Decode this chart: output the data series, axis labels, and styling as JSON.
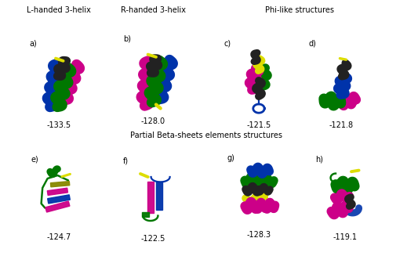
{
  "group1_label": "L-handed 3-helix",
  "group2_label": "R-handed 3-helix",
  "group3_label": "Phi-like structures",
  "group4_label": "Partial Beta-sheets elements structures",
  "panel_labels": [
    "a)",
    "b)",
    "c)",
    "d)",
    "e)",
    "f)",
    "g)",
    "h)"
  ],
  "energy_values": [
    "-133.5",
    "-128.0",
    "-121.5",
    "-121.8",
    "-124.7",
    "-122.5",
    "-128.3",
    "-119.1"
  ],
  "bg_color": "#f0f0f0",
  "blue": "#0033aa",
  "green": "#007700",
  "magenta": "#cc0088",
  "dark": "#222222",
  "yellow": "#dddd00",
  "olive": "#888800",
  "panel_label_fontsize": 7,
  "group_label_fontsize": 7,
  "energy_fontsize": 7
}
